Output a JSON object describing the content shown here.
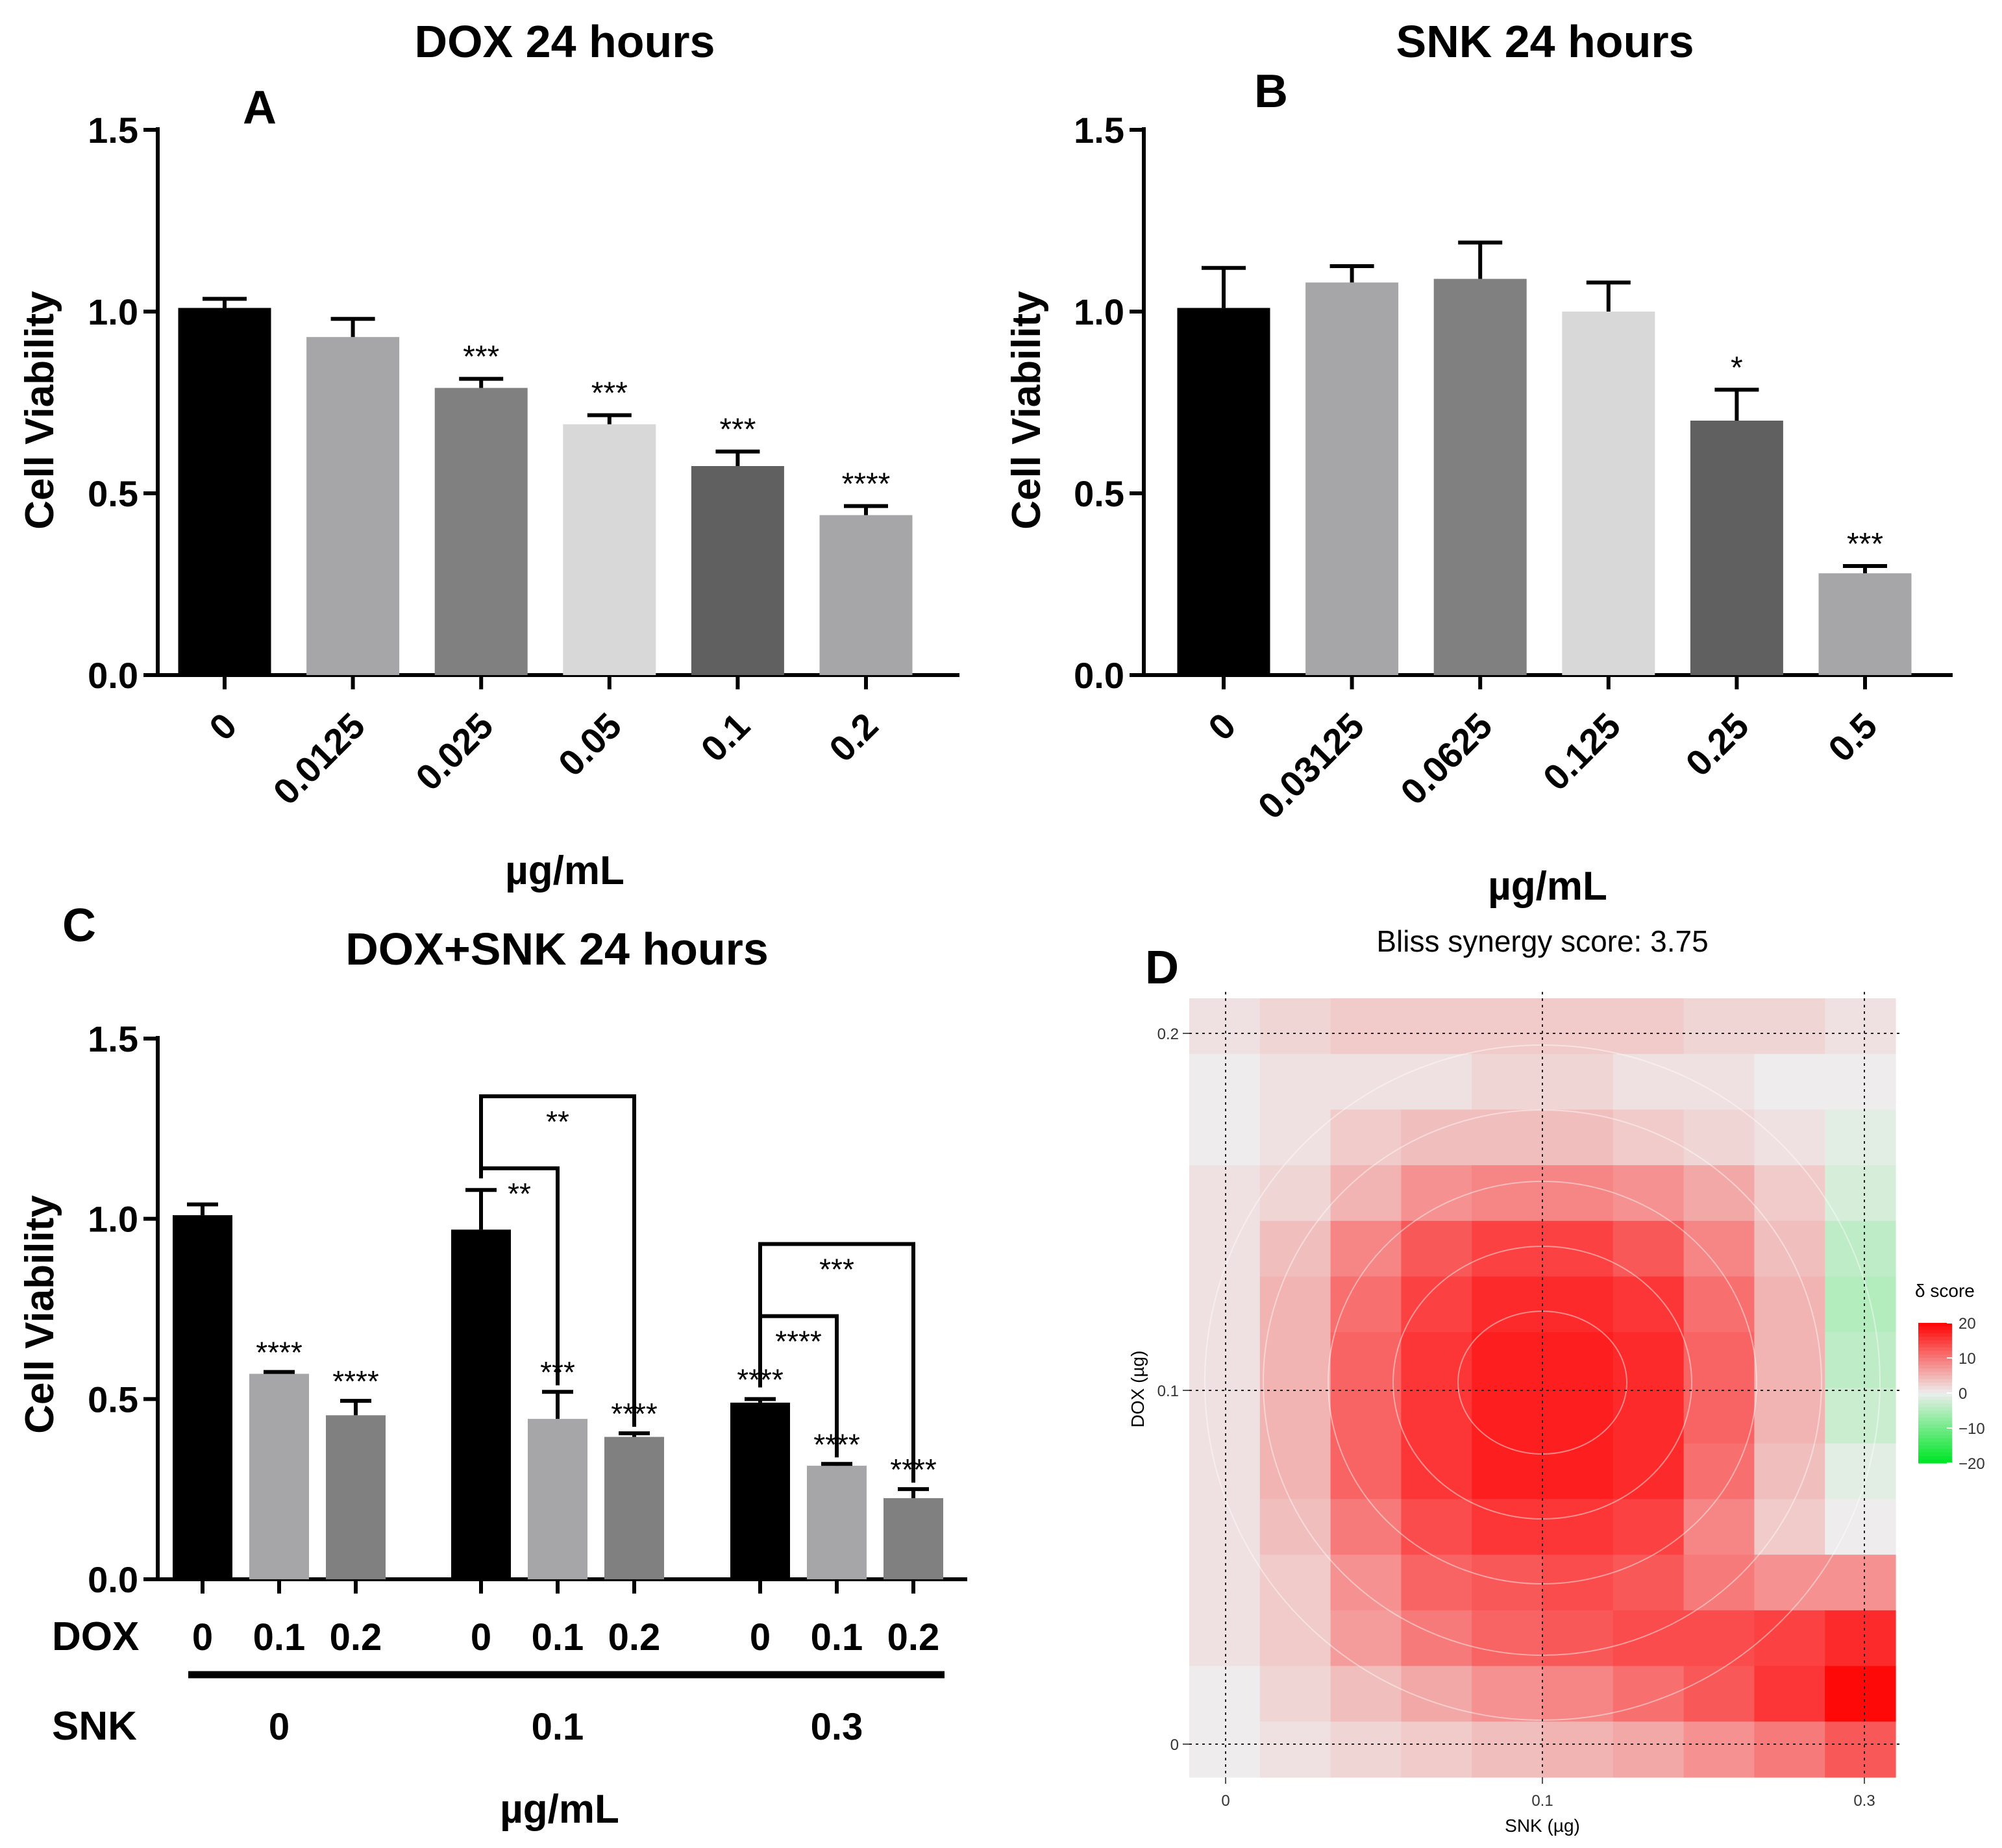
{
  "figure": {
    "panels": {
      "A": {
        "letter": "A"
      },
      "B": {
        "letter": "B"
      },
      "C": {
        "letter": "C"
      },
      "D": {
        "letter": "D"
      }
    }
  },
  "chart_data": [
    {
      "id": "A",
      "type": "bar",
      "title": "DOX 24 hours",
      "xlabel": "µg/mL",
      "ylabel": "Cell Viability",
      "ylim": [
        0,
        1.5
      ],
      "yticks": [
        "0.0",
        "0.5",
        "1.0",
        "1.5"
      ],
      "categories": [
        "0",
        "0.0125",
        "0.025",
        "0.05",
        "0.1",
        "0.2"
      ],
      "values": [
        1.01,
        0.93,
        0.79,
        0.69,
        0.575,
        0.44
      ],
      "errors": [
        0.025,
        0.05,
        0.025,
        0.025,
        0.04,
        0.025
      ],
      "significance": [
        "",
        "",
        "***",
        "***",
        "***",
        "****"
      ],
      "colors": [
        "#000000",
        "#a6a6a9",
        "#808080",
        "#d8d8d8",
        "#606060",
        "#a6a6a9"
      ]
    },
    {
      "id": "B",
      "type": "bar",
      "title": "SNK 24 hours",
      "xlabel": "µg/mL",
      "ylabel": "Cell Viability",
      "ylim": [
        0,
        1.5
      ],
      "yticks": [
        "0.0",
        "0.5",
        "1.0",
        "1.5"
      ],
      "categories": [
        "0",
        "0.03125",
        "0.0625",
        "0.125",
        "0.25",
        "0.5"
      ],
      "values": [
        1.01,
        1.08,
        1.09,
        1.0,
        0.7,
        0.28
      ],
      "errors": [
        0.11,
        0.045,
        0.1,
        0.08,
        0.085,
        0.02
      ],
      "significance": [
        "",
        "",
        "",
        "",
        "*",
        "***"
      ],
      "colors": [
        "#000000",
        "#a6a6a9",
        "#808080",
        "#d8d8d8",
        "#606060",
        "#a6a6a9"
      ]
    },
    {
      "id": "C",
      "type": "bar",
      "title": "DOX+SNK 24 hours",
      "xlabel": "µg/mL",
      "ylabel": "Cell Viability",
      "ylim": [
        0,
        1.5
      ],
      "yticks": [
        "0.0",
        "0.5",
        "1.0",
        "1.5"
      ],
      "row_labels": {
        "dox": "DOX",
        "snk": "SNK"
      },
      "dox_levels": [
        "0",
        "0.1",
        "0.2"
      ],
      "snk_groups": [
        "0",
        "0.1",
        "0.3"
      ],
      "series": [
        {
          "snk": "0",
          "values": [
            1.01,
            0.57,
            0.455
          ],
          "errors": [
            0.03,
            0.005,
            0.04
          ],
          "significance": [
            "",
            "****",
            "****"
          ]
        },
        {
          "snk": "0.1",
          "values": [
            0.97,
            0.445,
            0.395
          ],
          "errors": [
            0.11,
            0.075,
            0.01
          ],
          "significance": [
            "",
            "***",
            "****"
          ]
        },
        {
          "snk": "0.3",
          "values": [
            0.49,
            0.315,
            0.225
          ],
          "errors": [
            0.01,
            0.005,
            0.025
          ],
          "significance": [
            "****",
            "****",
            "****"
          ]
        }
      ],
      "colors": [
        "#000000",
        "#a6a6a9",
        "#808080"
      ],
      "comparisons": [
        {
          "group": "0.1",
          "from": 0,
          "to": 1,
          "label": "**",
          "level": 1.14
        },
        {
          "group": "0.1",
          "from": 0,
          "to": 2,
          "label": "**",
          "level": 1.34
        },
        {
          "group": "0.3",
          "from": 0,
          "to": 1,
          "label": "****",
          "level": 0.73
        },
        {
          "group": "0.3",
          "from": 0,
          "to": 2,
          "label": "***",
          "level": 0.93
        }
      ]
    },
    {
      "id": "D",
      "type": "heatmap",
      "title": "Bliss synergy score: 3.75",
      "xlabel": "SNK (µg)",
      "ylabel": "DOX (µg)",
      "xticks": [
        "0",
        "0.1",
        "0.3"
      ],
      "yticks": [
        "0",
        "0.1",
        "0.2"
      ],
      "legend": {
        "title": "δ score",
        "ticks": [
          "20",
          "10",
          "0",
          "−10",
          "−20"
        ],
        "range": [
          -20,
          20
        ]
      },
      "grid": [
        [
          1,
          2,
          3,
          3,
          3,
          3,
          3,
          2,
          2,
          1
        ],
        [
          0,
          1,
          1,
          1,
          2,
          2,
          1,
          1,
          0,
          0
        ],
        [
          0,
          1,
          3,
          4,
          4,
          4,
          3,
          2,
          1,
          -1
        ],
        [
          1,
          2,
          5,
          8,
          9,
          9,
          8,
          6,
          3,
          -2
        ],
        [
          1,
          4,
          9,
          13,
          15,
          15,
          13,
          9,
          4,
          -4
        ],
        [
          1,
          5,
          11,
          15,
          17,
          17,
          16,
          11,
          5,
          -5
        ],
        [
          1,
          5,
          12,
          16,
          18,
          18,
          17,
          12,
          5,
          -4
        ],
        [
          1,
          5,
          12,
          16,
          18,
          18,
          17,
          12,
          5,
          -3
        ],
        [
          1,
          5,
          12,
          16,
          18,
          18,
          17,
          11,
          4,
          -1
        ],
        [
          1,
          4,
          10,
          14,
          16,
          16,
          15,
          9,
          3,
          0
        ],
        [
          1,
          3,
          8,
          12,
          13,
          14,
          13,
          10,
          8,
          8
        ],
        [
          1,
          3,
          7,
          10,
          12,
          13,
          14,
          14,
          15,
          17
        ],
        [
          0,
          2,
          4,
          6,
          8,
          9,
          11,
          13,
          16,
          20
        ],
        [
          0,
          1,
          2,
          3,
          4,
          5,
          6,
          8,
          10,
          13
        ]
      ]
    }
  ]
}
